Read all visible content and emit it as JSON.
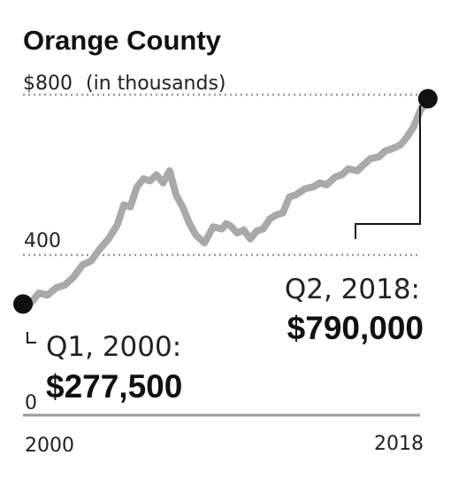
{
  "chart_data": {
    "type": "line",
    "title": "Orange County",
    "y_unit_label": "(in thousands)",
    "x_tick_labels": [
      "2000",
      "2018"
    ],
    "y_tick_labels": [
      "$800",
      "400",
      "0"
    ],
    "y_ticks": [
      800,
      400,
      0
    ],
    "xlim": [
      2000.0,
      2018.5
    ],
    "ylim": [
      0,
      800
    ],
    "grid": "dotted horizontal at 400 and 800",
    "colors": {
      "line": "#a9a9a9",
      "marker": "#111111",
      "grid": "#999999"
    },
    "series": [
      {
        "x": [
          2000.0,
          2000.4,
          2000.8,
          2001.2,
          2001.6,
          2002.0,
          2002.4,
          2002.8,
          2003.2,
          2003.6,
          2004.0,
          2004.3,
          2004.6,
          2004.9,
          2005.2,
          2005.5,
          2005.8,
          2006.1,
          2006.4,
          2006.7,
          2007.0,
          2007.3,
          2007.6,
          2008.0,
          2008.4,
          2008.8,
          2009.0,
          2009.2,
          2009.5,
          2009.8,
          2010.1,
          2010.4,
          2010.7,
          2011.0,
          2011.3,
          2011.6,
          2011.9,
          2012.2,
          2012.6,
          2013.0,
          2013.3,
          2013.6,
          2014.0,
          2014.3,
          2014.6,
          2015.0,
          2015.3,
          2015.6,
          2016.0,
          2016.3,
          2016.6,
          2017.0,
          2017.3,
          2017.6,
          2017.9,
          2018.25
        ],
        "y": [
          277.5,
          305,
          300,
          318,
          325,
          345,
          375,
          385,
          415,
          440,
          475,
          525,
          520,
          570,
          590,
          585,
          600,
          580,
          610,
          550,
          520,
          480,
          450,
          430,
          470,
          465,
          478,
          472,
          455,
          462,
          440,
          460,
          465,
          490,
          500,
          505,
          545,
          550,
          565,
          570,
          580,
          575,
          595,
          600,
          615,
          610,
          625,
          640,
          645,
          660,
          665,
          675,
          695,
          720,
          760,
          790
        ]
      }
    ],
    "annotations": [
      {
        "label": "Q1, 2000:",
        "value": "$277,500",
        "x": 2000.0,
        "y": 277.5
      },
      {
        "label": "Q2, 2018:",
        "value": "$790,000",
        "x": 2018.25,
        "y": 790
      }
    ]
  }
}
